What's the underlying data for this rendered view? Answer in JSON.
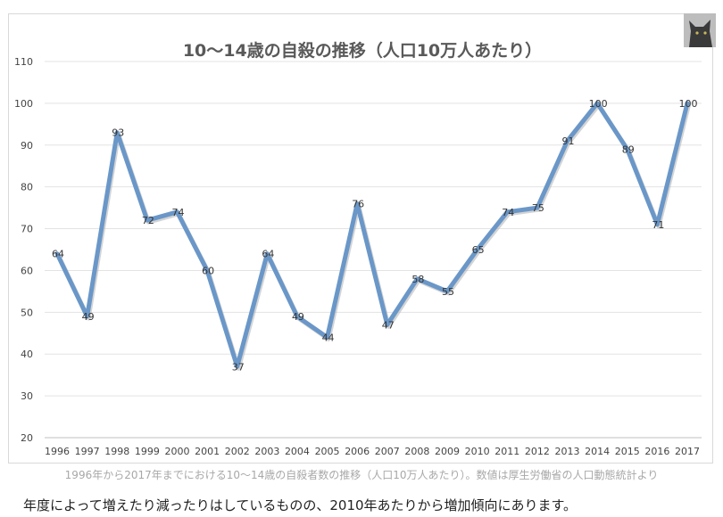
{
  "chart_data": {
    "type": "line",
    "title": "10〜14歳の自殺の推移（人口10万人あたり）",
    "x": [
      "1996",
      "1997",
      "1998",
      "1999",
      "2000",
      "2001",
      "2002",
      "2003",
      "2004",
      "2005",
      "2006",
      "2007",
      "2008",
      "2009",
      "2010",
      "2011",
      "2012",
      "2013",
      "2014",
      "2015",
      "2016",
      "2017"
    ],
    "values": [
      64,
      49,
      93,
      72,
      74,
      60,
      37,
      64,
      49,
      44,
      76,
      47,
      58,
      55,
      65,
      74,
      75,
      91,
      100,
      89,
      71,
      100
    ],
    "ylim": [
      20,
      110
    ],
    "yticks": [
      20,
      30,
      40,
      50,
      60,
      70,
      80,
      90,
      100,
      110
    ],
    "grid": true,
    "legend": "none",
    "line_color": "#6a97c8",
    "line_shadow_color": "#b8b8b8",
    "xlabel": "",
    "ylabel": ""
  },
  "caption": "1996年から2017年までにおける10〜14歳の自殺者数の推移（人口10万人あたり）。数値は厚生労働省の人口動態統計より",
  "body_text": "年度によって増えたり減ったりはしているものの、2010年あたりから増加傾向にあります。"
}
